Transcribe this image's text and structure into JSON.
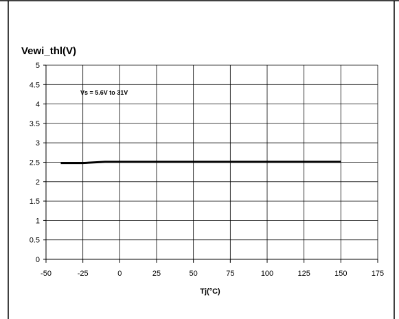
{
  "chart_data": {
    "type": "line",
    "title": "Vewi_thl(V)",
    "xlabel": "Tj(°C)",
    "ylabel": "",
    "annotation": "Vs = 5.6V to 31V",
    "xlim": [
      -50,
      175
    ],
    "ylim": [
      0,
      5
    ],
    "xticks": [
      -50,
      -25,
      0,
      25,
      50,
      75,
      100,
      125,
      150,
      175
    ],
    "yticks": [
      0,
      0.5,
      1,
      1.5,
      2,
      2.5,
      3,
      3.5,
      4,
      4.5,
      5
    ],
    "xtick_labels": [
      "-50",
      "-25",
      "0",
      "25",
      "50",
      "75",
      "100",
      "125",
      "150",
      "175"
    ],
    "ytick_labels": [
      "0",
      "0.5",
      "1",
      "1.5",
      "2",
      "2.5",
      "3",
      "3.5",
      "4",
      "4.5",
      "5"
    ],
    "grid": true,
    "legend": "none",
    "series": [
      {
        "x": [
          -40,
          -25,
          -10,
          0,
          25,
          50,
          75,
          100,
          125,
          150
        ],
        "y": [
          2.48,
          2.48,
          2.51,
          2.51,
          2.51,
          2.51,
          2.51,
          2.51,
          2.51,
          2.51
        ],
        "color": "#000000"
      }
    ]
  }
}
